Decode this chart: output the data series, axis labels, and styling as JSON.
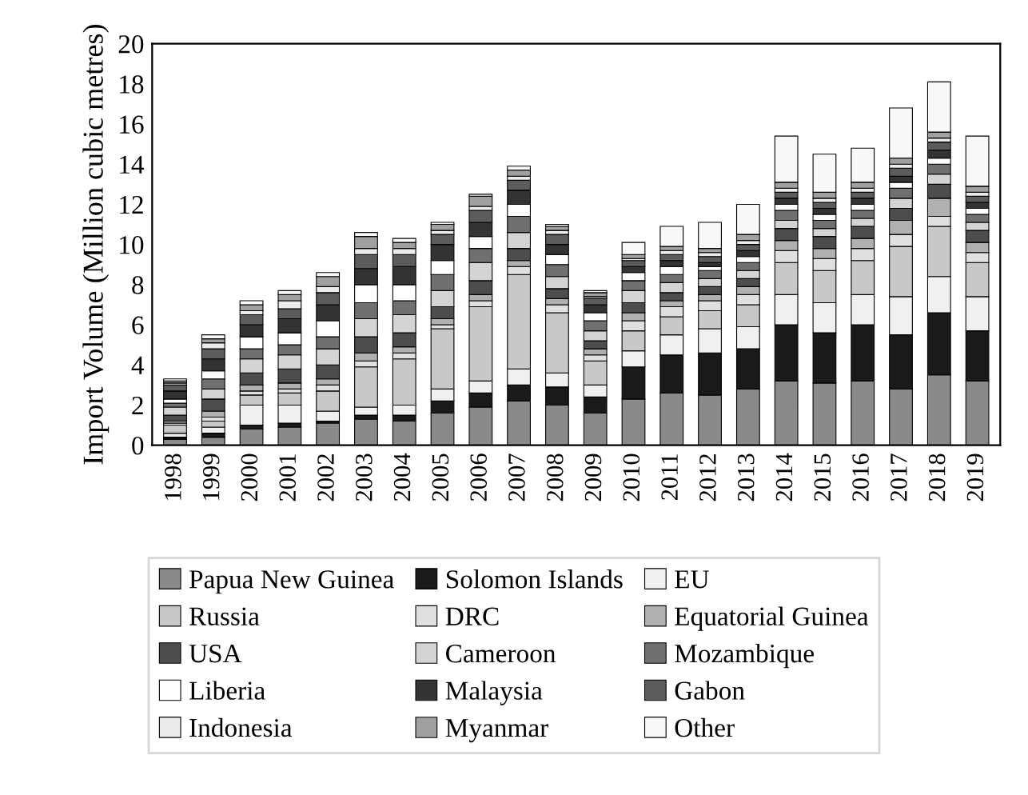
{
  "chart_data": {
    "type": "bar",
    "stacked": true,
    "ylabel": "Import Volume (Million cubic metres)",
    "categories": [
      "1998",
      "1999",
      "2000",
      "2001",
      "2002",
      "2003",
      "2004",
      "2005",
      "2006",
      "2007",
      "2008",
      "2009",
      "2010",
      "2011",
      "2012",
      "2013",
      "2014",
      "2015",
      "2016",
      "2017",
      "2018",
      "2019"
    ],
    "ylim": [
      0,
      20
    ],
    "yticks": [
      0,
      2,
      4,
      6,
      8,
      10,
      12,
      14,
      16,
      18,
      20
    ],
    "grid": false,
    "legend": "bottom",
    "series": [
      {
        "name": "Papua New Guinea",
        "color": "#8a8a8a",
        "values": [
          0.3,
          0.4,
          0.8,
          0.9,
          1.1,
          1.3,
          1.2,
          1.6,
          1.9,
          2.2,
          2,
          1.6,
          2.3,
          2.6,
          2.5,
          2.8,
          3.2,
          3.1,
          3.2,
          2.8,
          3.5,
          3.2
        ]
      },
      {
        "name": "Solomon Islands",
        "color": "#1a1a1a",
        "values": [
          0.1,
          0.2,
          0.2,
          0.2,
          0.1,
          0.2,
          0.3,
          0.6,
          0.7,
          0.8,
          0.9,
          0.8,
          1.6,
          1.9,
          2.1,
          2,
          2.8,
          2.5,
          2.8,
          2.7,
          3.1,
          2.5
        ]
      },
      {
        "name": "EU",
        "color": "#f0f0f0",
        "values": [
          0.2,
          0.3,
          1,
          0.9,
          0.5,
          0.4,
          0.5,
          0.6,
          0.6,
          0.8,
          0.7,
          0.6,
          0.8,
          1,
          1.2,
          1.1,
          1.5,
          1.5,
          1.5,
          1.9,
          1.8,
          1.7
        ]
      },
      {
        "name": "Russia",
        "color": "#c8c8c8",
        "values": [
          0.4,
          0.3,
          0.5,
          0.6,
          1,
          2,
          2.3,
          3,
          3.7,
          4.7,
          3,
          1.2,
          1,
          0.9,
          0.9,
          1.1,
          1.6,
          1.6,
          1.7,
          2.5,
          2.5,
          1.7
        ]
      },
      {
        "name": "DRC",
        "color": "#e0e0e0",
        "values": [
          0.1,
          0.2,
          0.2,
          0.2,
          0.3,
          0.3,
          0.3,
          0.2,
          0.3,
          0.4,
          0.4,
          0.3,
          0.5,
          0.5,
          0.5,
          0.5,
          0.6,
          0.6,
          0.6,
          0.6,
          0.5,
          0.5
        ]
      },
      {
        "name": "Equatorial Guinea",
        "color": "#b0b0b0",
        "values": [
          0.1,
          0.3,
          0.3,
          0.3,
          0.3,
          0.4,
          0.3,
          0.3,
          0.3,
          0.3,
          0.3,
          0.3,
          0.4,
          0.3,
          0.3,
          0.4,
          0.5,
          0.5,
          0.5,
          0.7,
          0.9,
          0.5
        ]
      },
      {
        "name": "USA",
        "color": "#4d4d4d",
        "values": [
          0.3,
          0.6,
          0.6,
          0.7,
          0.7,
          0.8,
          0.7,
          0.6,
          0.7,
          0.6,
          0.5,
          0.4,
          0.5,
          0.4,
          0.4,
          0.4,
          0.6,
          0.6,
          0.6,
          0.6,
          0.7,
          0.6
        ]
      },
      {
        "name": "Cameroon",
        "color": "#d4d4d4",
        "values": [
          0.4,
          0.5,
          0.7,
          0.7,
          0.8,
          0.9,
          0.9,
          0.8,
          0.9,
          0.8,
          0.6,
          0.5,
          0.6,
          0.5,
          0.4,
          0.4,
          0.4,
          0.4,
          0.4,
          0.5,
          0.5,
          0.4
        ]
      },
      {
        "name": "Mozambique",
        "color": "#707070",
        "values": [
          0.2,
          0.5,
          0.5,
          0.5,
          0.6,
          0.8,
          0.7,
          0.8,
          0.7,
          0.8,
          0.6,
          0.5,
          0.5,
          0.4,
          0.4,
          0.4,
          0.5,
          0.4,
          0.4,
          0.5,
          0.5,
          0.4
        ]
      },
      {
        "name": "Liberia",
        "color": "#ffffff",
        "values": [
          0.2,
          0.4,
          0.6,
          0.6,
          0.8,
          0.9,
          0.8,
          0.7,
          0.6,
          0.6,
          0.5,
          0.4,
          0.4,
          0.4,
          0.2,
          0.3,
          0.3,
          0.3,
          0.3,
          0.3,
          0.3,
          0.3
        ]
      },
      {
        "name": "Malaysia",
        "color": "#333333",
        "values": [
          0.4,
          0.6,
          0.6,
          0.7,
          0.8,
          0.8,
          0.9,
          0.8,
          0.7,
          0.7,
          0.5,
          0.4,
          0.3,
          0.3,
          0.2,
          0.3,
          0.3,
          0.3,
          0.3,
          0.3,
          0.4,
          0.3
        ]
      },
      {
        "name": "Gabon",
        "color": "#5c5c5c",
        "values": [
          0.3,
          0.5,
          0.5,
          0.5,
          0.6,
          0.7,
          0.6,
          0.5,
          0.6,
          0.5,
          0.5,
          0.3,
          0.3,
          0.3,
          0.3,
          0.3,
          0.3,
          0.3,
          0.3,
          0.4,
          0.4,
          0.3
        ]
      },
      {
        "name": "Indonesia",
        "color": "#ebebeb",
        "values": [
          0.1,
          0.3,
          0.2,
          0.4,
          0.3,
          0.3,
          0.3,
          0.2,
          0.2,
          0.2,
          0.2,
          0.1,
          0.1,
          0.2,
          0.2,
          0.2,
          0.2,
          0.2,
          0.2,
          0.2,
          0.2,
          0.2
        ]
      },
      {
        "name": "Myanmar",
        "color": "#a0a0a0",
        "values": [
          0.1,
          0.2,
          0.3,
          0.3,
          0.5,
          0.6,
          0.3,
          0.3,
          0.5,
          0.3,
          0.2,
          0.2,
          0.2,
          0.2,
          0.2,
          0.3,
          0.3,
          0.3,
          0.3,
          0.3,
          0.3,
          0.3
        ]
      },
      {
        "name": "Other",
        "color": "#f8f8f8",
        "values": [
          0.1,
          0.2,
          0.2,
          0.2,
          0.2,
          0.2,
          0.2,
          0.1,
          0.1,
          0.2,
          0.1,
          0.1,
          0.6,
          1,
          1.3,
          1.5,
          2.3,
          1.9,
          1.7,
          2.5,
          2.5,
          2.5
        ]
      }
    ]
  }
}
